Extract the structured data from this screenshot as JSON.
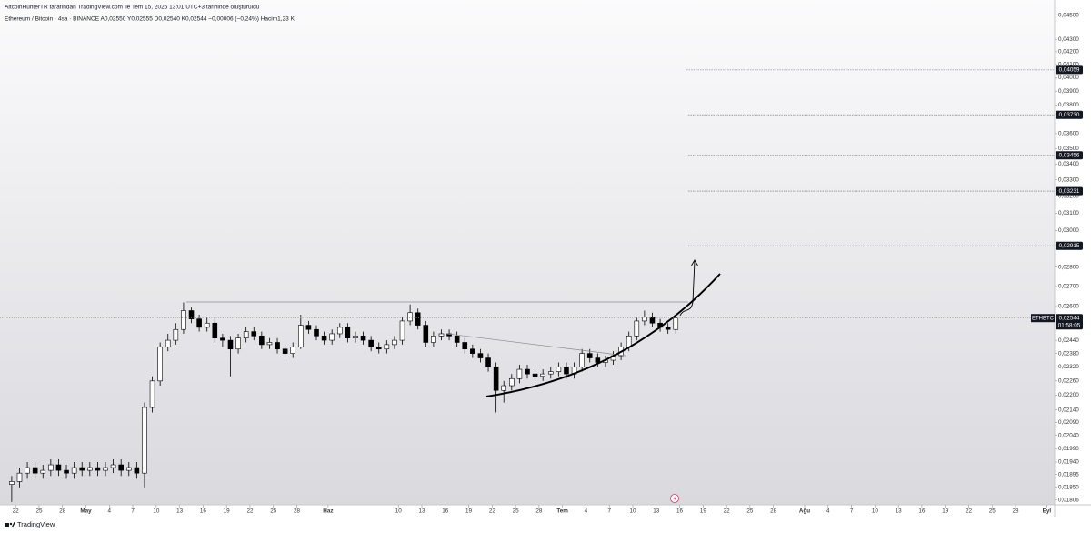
{
  "chart_data": {
    "type": "candlestick",
    "title": "AltcoinHunterTR tarafından TradingView.com ile Tem 15, 2025 13:01 UTC+3 tarihinde oluşturuldu",
    "subtitle": "Ethereum / Bitcoin · 4sa · BINANCE  A0,02550  Y0,02555  D0,02540  K0,02544  −0,00006 (−0,24%)  Hacim1,23 K",
    "brand": "TradingView",
    "log_scale": true,
    "x": [
      "2025-04-21",
      "2025-04-22",
      "2025-04-23",
      "2025-04-24",
      "2025-04-25",
      "2025-04-26",
      "2025-04-27",
      "2025-04-28",
      "2025-04-29",
      "2025-04-30",
      "2025-05-01",
      "2025-05-02",
      "2025-05-03",
      "2025-05-04",
      "2025-05-05",
      "2025-05-06",
      "2025-05-07",
      "2025-05-08",
      "2025-05-09",
      "2025-05-10",
      "2025-05-11",
      "2025-05-12",
      "2025-05-13",
      "2025-05-14",
      "2025-05-15",
      "2025-05-16",
      "2025-05-17",
      "2025-05-18",
      "2025-05-19",
      "2025-05-20",
      "2025-05-21",
      "2025-05-22",
      "2025-05-23",
      "2025-05-24",
      "2025-05-25",
      "2025-05-26",
      "2025-05-27",
      "2025-05-28",
      "2025-05-29",
      "2025-05-30",
      "2025-05-31",
      "2025-06-01",
      "2025-06-02",
      "2025-06-03",
      "2025-06-04",
      "2025-06-05",
      "2025-06-06",
      "2025-06-07",
      "2025-06-08",
      "2025-06-09",
      "2025-06-10",
      "2025-06-11",
      "2025-06-12",
      "2025-06-13",
      "2025-06-14",
      "2025-06-15",
      "2025-06-16",
      "2025-06-17",
      "2025-06-18",
      "2025-06-19",
      "2025-06-20",
      "2025-06-21",
      "2025-06-22",
      "2025-06-23",
      "2025-06-24",
      "2025-06-25",
      "2025-06-26",
      "2025-06-27",
      "2025-06-28",
      "2025-06-29",
      "2025-06-30",
      "2025-07-01",
      "2025-07-02",
      "2025-07-03",
      "2025-07-04",
      "2025-07-05",
      "2025-07-06",
      "2025-07-07",
      "2025-07-08",
      "2025-07-09",
      "2025-07-10",
      "2025-07-11",
      "2025-07-12",
      "2025-07-13",
      "2025-07-14",
      "2025-07-15"
    ],
    "open": [
      0.0186,
      0.0187,
      0.019,
      0.0192,
      0.019,
      0.0191,
      0.0193,
      0.0191,
      0.019,
      0.0192,
      0.0191,
      0.0192,
      0.0191,
      0.0192,
      0.0193,
      0.0191,
      0.0192,
      0.019,
      0.0215,
      0.0226,
      0.0241,
      0.0244,
      0.0249,
      0.0258,
      0.0254,
      0.025,
      0.0252,
      0.0245,
      0.0244,
      0.024,
      0.0245,
      0.0248,
      0.0246,
      0.0242,
      0.0243,
      0.024,
      0.0238,
      0.0241,
      0.0251,
      0.0249,
      0.0246,
      0.0244,
      0.0247,
      0.025,
      0.0245,
      0.0246,
      0.0244,
      0.0241,
      0.024,
      0.0242,
      0.0244,
      0.0253,
      0.0257,
      0.0251,
      0.0243,
      0.0246,
      0.0247,
      0.0246,
      0.0243,
      0.024,
      0.0238,
      0.0236,
      0.0232,
      0.0222,
      0.0224,
      0.0227,
      0.0231,
      0.0229,
      0.0228,
      0.0229,
      0.023,
      0.0232,
      0.0229,
      0.0232,
      0.0238,
      0.0236,
      0.0234,
      0.0235,
      0.0237,
      0.0241,
      0.0246,
      0.0253,
      0.0255,
      0.0252,
      0.025,
      0.0249
    ],
    "high": [
      0.0189,
      0.0192,
      0.0194,
      0.0194,
      0.0193,
      0.0195,
      0.0195,
      0.0193,
      0.0194,
      0.0194,
      0.0194,
      0.0194,
      0.0194,
      0.0195,
      0.0195,
      0.0194,
      0.0194,
      0.0217,
      0.0228,
      0.0243,
      0.0247,
      0.0252,
      0.0262,
      0.026,
      0.0256,
      0.0255,
      0.0254,
      0.0247,
      0.0246,
      0.0247,
      0.025,
      0.025,
      0.0248,
      0.0245,
      0.0245,
      0.0242,
      0.0243,
      0.0256,
      0.0253,
      0.0251,
      0.0248,
      0.0249,
      0.0252,
      0.0252,
      0.0248,
      0.0248,
      0.0246,
      0.0243,
      0.0244,
      0.0246,
      0.0255,
      0.0261,
      0.0259,
      0.0253,
      0.0248,
      0.0249,
      0.0249,
      0.0248,
      0.0245,
      0.0242,
      0.024,
      0.0238,
      0.0234,
      0.0226,
      0.0229,
      0.0233,
      0.0233,
      0.0231,
      0.0231,
      0.0232,
      0.0234,
      0.0234,
      0.0234,
      0.024,
      0.024,
      0.0238,
      0.0237,
      0.0239,
      0.0243,
      0.0248,
      0.0255,
      0.0258,
      0.0257,
      0.0254,
      0.0252,
      0.02555
    ],
    "low": [
      0.018,
      0.0185,
      0.0188,
      0.0188,
      0.0188,
      0.0189,
      0.0189,
      0.0188,
      0.0188,
      0.0189,
      0.0189,
      0.0189,
      0.0189,
      0.019,
      0.0189,
      0.0189,
      0.0188,
      0.0185,
      0.0213,
      0.0224,
      0.0239,
      0.0242,
      0.0247,
      0.0252,
      0.0248,
      0.0248,
      0.0243,
      0.0241,
      0.0228,
      0.0238,
      0.0243,
      0.0244,
      0.024,
      0.024,
      0.0238,
      0.0236,
      0.0236,
      0.024,
      0.0247,
      0.0244,
      0.0242,
      0.0242,
      0.0245,
      0.0243,
      0.0243,
      0.0242,
      0.0239,
      0.0238,
      0.0238,
      0.024,
      0.0242,
      0.0251,
      0.0249,
      0.0241,
      0.0241,
      0.0244,
      0.0244,
      0.0241,
      0.0238,
      0.0236,
      0.0234,
      0.023,
      0.0213,
      0.0217,
      0.0222,
      0.0225,
      0.0227,
      0.0226,
      0.0226,
      0.0227,
      0.0228,
      0.0227,
      0.0227,
      0.023,
      0.0234,
      0.0232,
      0.0232,
      0.0233,
      0.0235,
      0.0239,
      0.0244,
      0.0251,
      0.025,
      0.0248,
      0.0247,
      0.0247
    ],
    "close": [
      0.0187,
      0.019,
      0.0192,
      0.019,
      0.0191,
      0.0193,
      0.0191,
      0.019,
      0.0192,
      0.0191,
      0.0192,
      0.0191,
      0.0192,
      0.0193,
      0.0191,
      0.0192,
      0.019,
      0.0215,
      0.0226,
      0.0241,
      0.0244,
      0.0249,
      0.0258,
      0.0254,
      0.025,
      0.0252,
      0.0245,
      0.0244,
      0.024,
      0.0245,
      0.0248,
      0.0246,
      0.0242,
      0.0243,
      0.024,
      0.0238,
      0.0241,
      0.0251,
      0.0249,
      0.0246,
      0.0244,
      0.0247,
      0.025,
      0.0245,
      0.0246,
      0.0244,
      0.0241,
      0.024,
      0.0242,
      0.0244,
      0.0253,
      0.0257,
      0.0251,
      0.0243,
      0.0246,
      0.0247,
      0.0246,
      0.0243,
      0.024,
      0.0238,
      0.0236,
      0.0232,
      0.0222,
      0.0224,
      0.0227,
      0.0231,
      0.0229,
      0.0228,
      0.0229,
      0.023,
      0.0232,
      0.0229,
      0.0232,
      0.0238,
      0.0236,
      0.0234,
      0.0235,
      0.0237,
      0.0241,
      0.0246,
      0.0253,
      0.0255,
      0.0252,
      0.025,
      0.0249,
      0.02544
    ],
    "xlim": [
      "2025-04-20",
      "2025-09-02"
    ],
    "xticks": [
      {
        "value": "2025-04-22",
        "label": "22"
      },
      {
        "value": "2025-04-25",
        "label": "25"
      },
      {
        "value": "2025-04-28",
        "label": "28"
      },
      {
        "value": "2025-05-01",
        "label": "May"
      },
      {
        "value": "2025-05-04",
        "label": "4"
      },
      {
        "value": "2025-05-07",
        "label": "7"
      },
      {
        "value": "2025-05-10",
        "label": "10"
      },
      {
        "value": "2025-05-13",
        "label": "13"
      },
      {
        "value": "2025-05-16",
        "label": "16"
      },
      {
        "value": "2025-05-19",
        "label": "19"
      },
      {
        "value": "2025-05-22",
        "label": "22"
      },
      {
        "value": "2025-05-25",
        "label": "25"
      },
      {
        "value": "2025-05-28",
        "label": "28"
      },
      {
        "value": "2025-06-01",
        "label": "Haz"
      },
      {
        "value": "2025-06-10",
        "label": "10"
      },
      {
        "value": "2025-06-13",
        "label": "13"
      },
      {
        "value": "2025-06-16",
        "label": "16"
      },
      {
        "value": "2025-06-19",
        "label": "19"
      },
      {
        "value": "2025-06-22",
        "label": "22"
      },
      {
        "value": "2025-06-25",
        "label": "25"
      },
      {
        "value": "2025-06-28",
        "label": "28"
      },
      {
        "value": "2025-07-01",
        "label": "Tem"
      },
      {
        "value": "2025-07-04",
        "label": "4"
      },
      {
        "value": "2025-07-07",
        "label": "7"
      },
      {
        "value": "2025-07-10",
        "label": "10"
      },
      {
        "value": "2025-07-13",
        "label": "13"
      },
      {
        "value": "2025-07-16",
        "label": "16"
      },
      {
        "value": "2025-07-19",
        "label": "19"
      },
      {
        "value": "2025-07-22",
        "label": "22"
      },
      {
        "value": "2025-07-25",
        "label": "25"
      },
      {
        "value": "2025-07-28",
        "label": "28"
      },
      {
        "value": "2025-08-01",
        "label": "Ağu"
      },
      {
        "value": "2025-08-04",
        "label": "4"
      },
      {
        "value": "2025-08-07",
        "label": "7"
      },
      {
        "value": "2025-08-10",
        "label": "10"
      },
      {
        "value": "2025-08-13",
        "label": "13"
      },
      {
        "value": "2025-08-16",
        "label": "16"
      },
      {
        "value": "2025-08-19",
        "label": "19"
      },
      {
        "value": "2025-08-22",
        "label": "22"
      },
      {
        "value": "2025-08-25",
        "label": "25"
      },
      {
        "value": "2025-08-28",
        "label": "28"
      },
      {
        "value": "2025-09-01",
        "label": "Eyl"
      }
    ],
    "ylim": [
      0.0179,
      0.0463
    ],
    "yticks": [
      {
        "value": 0.045,
        "label": "0,04500"
      },
      {
        "value": 0.043,
        "label": "0,04300"
      },
      {
        "value": 0.042,
        "label": "0,04200"
      },
      {
        "value": 0.041,
        "label": "0,04100"
      },
      {
        "value": 0.04,
        "label": "0,04000"
      },
      {
        "value": 0.039,
        "label": "0,03900"
      },
      {
        "value": 0.038,
        "label": "0,03800"
      },
      {
        "value": 0.036,
        "label": "0,03600"
      },
      {
        "value": 0.035,
        "label": "0,03500"
      },
      {
        "value": 0.034,
        "label": "0,03400"
      },
      {
        "value": 0.033,
        "label": "0,03300"
      },
      {
        "value": 0.032,
        "label": "0,03200"
      },
      {
        "value": 0.031,
        "label": "0,03100"
      },
      {
        "value": 0.03,
        "label": "0,03000"
      },
      {
        "value": 0.028,
        "label": "0,02800"
      },
      {
        "value": 0.027,
        "label": "0,02700"
      },
      {
        "value": 0.026,
        "label": "0,02600"
      },
      {
        "value": 0.0244,
        "label": "0,02440"
      },
      {
        "value": 0.0238,
        "label": "0,02380"
      },
      {
        "value": 0.0232,
        "label": "0,02320"
      },
      {
        "value": 0.0226,
        "label": "0,02260"
      },
      {
        "value": 0.022,
        "label": "0,02200"
      },
      {
        "value": 0.0214,
        "label": "0,02140"
      },
      {
        "value": 0.0209,
        "label": "0,02090"
      },
      {
        "value": 0.0204,
        "label": "0,02040"
      },
      {
        "value": 0.0199,
        "label": "0,01990"
      },
      {
        "value": 0.0194,
        "label": "0,01940"
      },
      {
        "value": 0.01895,
        "label": "0,01895"
      },
      {
        "value": 0.0185,
        "label": "0,01850"
      },
      {
        "value": 0.01806,
        "label": "0,01806"
      }
    ],
    "levels": [
      {
        "value": 0.04059,
        "label": "0,04059"
      },
      {
        "value": 0.0373,
        "label": "0,03730"
      },
      {
        "value": 0.03456,
        "label": "0,03456"
      },
      {
        "value": 0.03231,
        "label": "0,03231"
      },
      {
        "value": 0.02915,
        "label": "0,02915"
      }
    ],
    "last_price": {
      "value": 0.02544,
      "label": "0,02544"
    },
    "symbol": "ETHBTC",
    "countdown": "01:58:05",
    "up_color": "#ffffff",
    "down_color": "#000000",
    "wick_color": "#000000"
  }
}
